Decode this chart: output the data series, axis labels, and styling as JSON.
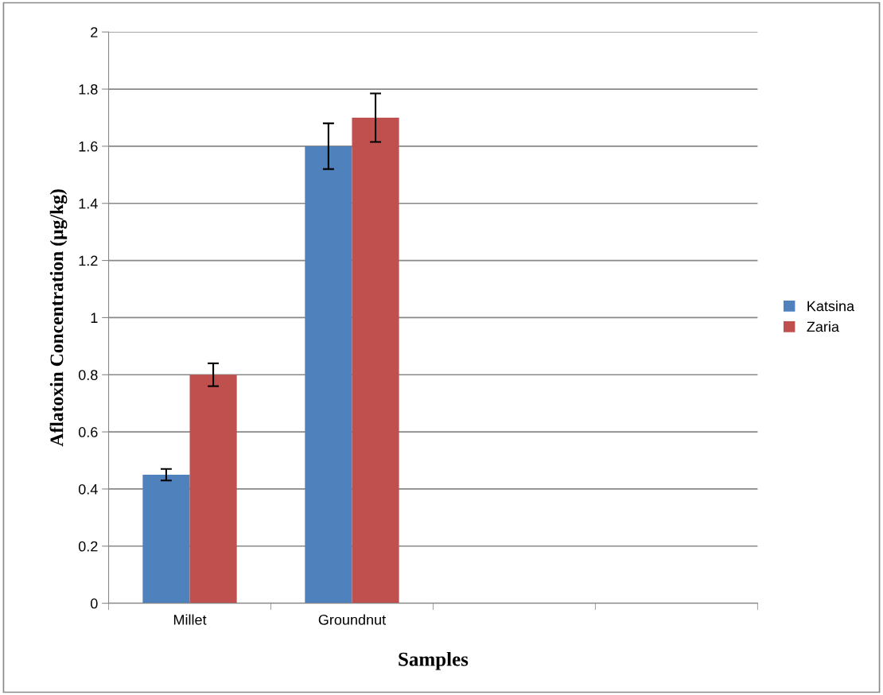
{
  "chart_data": {
    "type": "bar",
    "xlabel": "Samples",
    "ylabel": "Aflatoxin Concentration (µg/kg)",
    "categories": [
      "Millet",
      "Groundnut",
      null,
      null
    ],
    "series": [
      {
        "name": "Katsina",
        "color": "#4f81bd",
        "values": [
          0.45,
          1.6,
          null,
          null
        ],
        "errors": [
          0.02,
          0.08,
          null,
          null
        ]
      },
      {
        "name": "Zaria",
        "color": "#c0504d",
        "values": [
          0.8,
          1.7,
          null,
          null
        ],
        "errors": [
          0.04,
          0.085,
          null,
          null
        ]
      }
    ],
    "ylim": [
      0,
      2
    ],
    "yticks": [
      0,
      0.2,
      0.4,
      0.6,
      0.8,
      1,
      1.2,
      1.4,
      1.6,
      1.8,
      2
    ],
    "grid": "y",
    "legend": "right"
  }
}
